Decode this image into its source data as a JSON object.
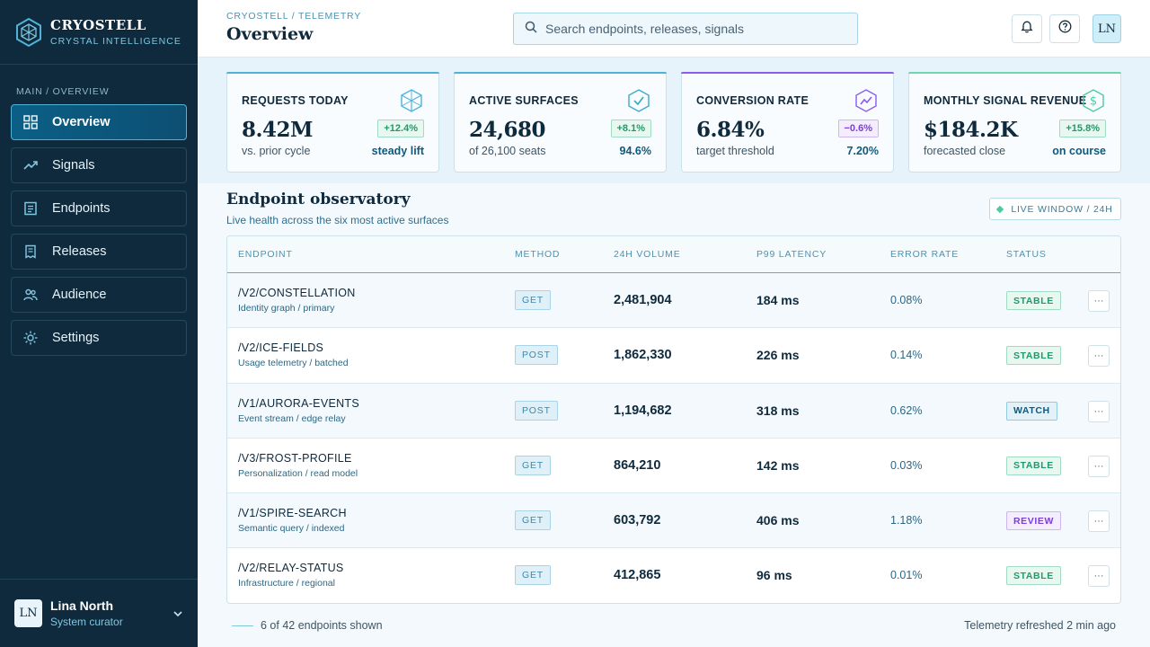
{
  "app": {
    "name": "CRYOSTELL",
    "tagline": "CRYSTAL INTELLIGENCE"
  },
  "sidebar": {
    "section": "MAIN / OVERVIEW",
    "items": [
      {
        "label": "Overview",
        "icon": "grid-icon",
        "active": true
      },
      {
        "label": "Signals",
        "icon": "trend-icon"
      },
      {
        "label": "Endpoints",
        "icon": "document-icon"
      },
      {
        "label": "Releases",
        "icon": "receipt-icon"
      },
      {
        "label": "Audience",
        "icon": "users-icon"
      },
      {
        "label": "Settings",
        "icon": "sun-gear-icon"
      }
    ],
    "user": {
      "initials": "LN",
      "name": "Lina North",
      "role": "System curator"
    }
  },
  "header": {
    "breadcrumb": "CRYOSTELL / TELEMETRY",
    "title": "Overview",
    "search_placeholder": "Search endpoints, releases, signals",
    "avatar": "LN"
  },
  "kpis": [
    {
      "label": "REQUESTS TODAY",
      "value": "8.42M",
      "delta": "+12.4%",
      "sub": "vs. prior cycle",
      "note": "steady lift",
      "icon": "cube-icon",
      "accent": "#4fb3d9",
      "delta_color": "#1f9a6b",
      "delta_bg": "#e8f8f1",
      "delta_border": "#9fdcc3",
      "note_color": "#0d5a7d"
    },
    {
      "label": "ACTIVE SURFACES",
      "value": "24,680",
      "delta": "+8.1%",
      "sub": "of 26,100 seats",
      "note": "94.6%",
      "icon": "shield-check-icon",
      "accent": "#4fb3d9",
      "delta_color": "#1f9a6b",
      "delta_bg": "#e8f8f1",
      "delta_border": "#9fdcc3",
      "note_color": "#0d5a7d"
    },
    {
      "label": "CONVERSION RATE",
      "value": "6.84%",
      "delta": "−0.6%",
      "sub": "target threshold",
      "note": "7.20%",
      "icon": "trend-hex-icon",
      "accent": "#8a5cf0",
      "delta_color": "#7c3fd6",
      "delta_bg": "#f3edfd",
      "delta_border": "#cdb6f3",
      "note_color": "#0d5a7d"
    },
    {
      "label": "MONTHLY SIGNAL REVENUE",
      "value": "$184.2K",
      "delta": "+15.8%",
      "sub": "forecasted close",
      "note": "on course",
      "icon": "dollar-hex-icon",
      "accent": "#6fd6b0",
      "delta_color": "#1f9a6b",
      "delta_bg": "#e8f8f1",
      "delta_border": "#9fdcc3",
      "note_color": "#0d5a7d"
    }
  ],
  "section": {
    "title": "Endpoint observatory",
    "subtitle": "Live health across the six most active surfaces",
    "chip": "LIVE WINDOW / 24H"
  },
  "table": {
    "columns": [
      "ENDPOINT",
      "METHOD",
      "24H VOLUME",
      "P99 LATENCY",
      "ERROR RATE",
      "STATUS"
    ],
    "rows": [
      {
        "endpoint": "/V2/CONSTELLATION",
        "desc": "Identity graph / primary",
        "method": "GET",
        "volume": "2,481,904",
        "latency": "184 ms",
        "error": "0.08%",
        "status": "STABLE"
      },
      {
        "endpoint": "/V2/ICE-FIELDS",
        "desc": "Usage telemetry / batched",
        "method": "POST",
        "volume": "1,862,330",
        "latency": "226 ms",
        "error": "0.14%",
        "status": "STABLE"
      },
      {
        "endpoint": "/V1/AURORA-EVENTS",
        "desc": "Event stream / edge relay",
        "method": "POST",
        "volume": "1,194,682",
        "latency": "318 ms",
        "error": "0.62%",
        "status": "WATCH"
      },
      {
        "endpoint": "/V3/FROST-PROFILE",
        "desc": "Personalization / read model",
        "method": "GET",
        "volume": "864,210",
        "latency": "142 ms",
        "error": "0.03%",
        "status": "STABLE"
      },
      {
        "endpoint": "/V1/SPIRE-SEARCH",
        "desc": "Semantic query / indexed",
        "method": "GET",
        "volume": "603,792",
        "latency": "406 ms",
        "error": "1.18%",
        "status": "REVIEW"
      },
      {
        "endpoint": "/V2/RELAY-STATUS",
        "desc": "Infrastructure / regional",
        "method": "GET",
        "volume": "412,865",
        "latency": "96 ms",
        "error": "0.01%",
        "status": "STABLE"
      }
    ],
    "more_label": "···"
  },
  "status_styles": {
    "STABLE": {
      "color": "#1f9a6b",
      "bg": "#e8f8f1",
      "border": "#9fdcc3"
    },
    "WATCH": {
      "color": "#0d5a7d",
      "bg": "#e3f2f9",
      "border": "#8fcbe2"
    },
    "REVIEW": {
      "color": "#7c3fd6",
      "bg": "#f3edfd",
      "border": "#cdb6f3"
    }
  },
  "footer": {
    "shown": "6 of 42 endpoints shown",
    "refreshed": "Telemetry refreshed 2 min ago"
  }
}
